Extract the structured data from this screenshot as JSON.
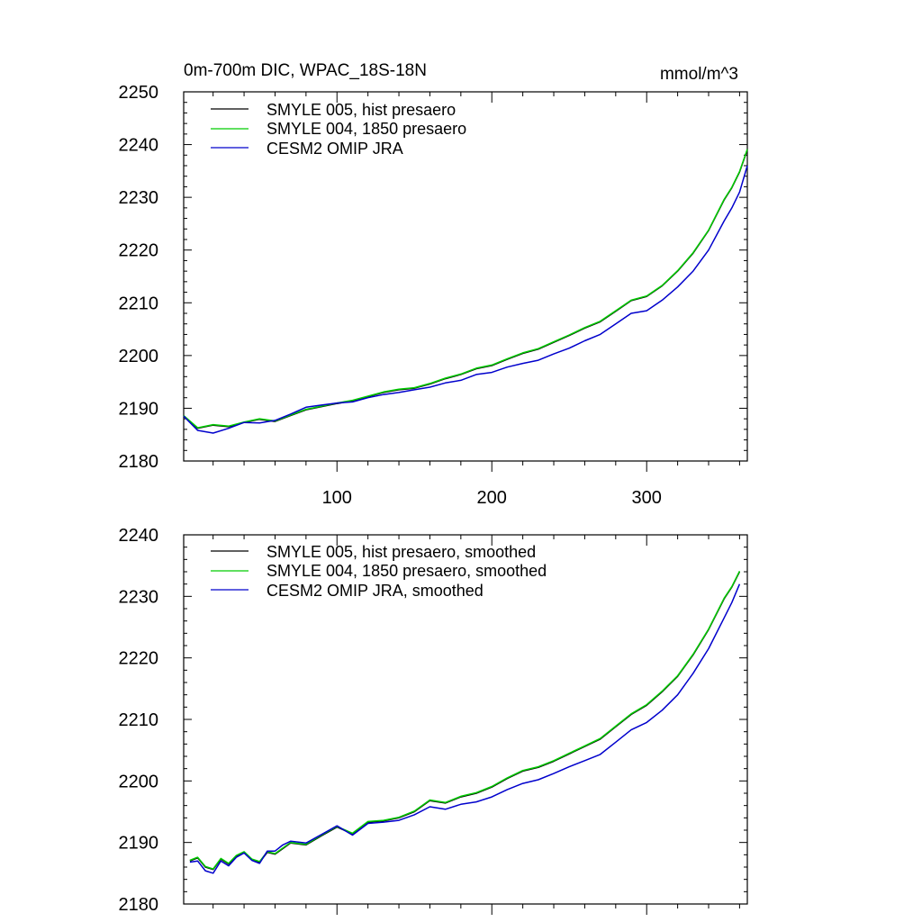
{
  "chart_data": [
    {
      "type": "line",
      "title": "0m-700m DIC, WPAC_18S-18N",
      "units": "mmol/m^3",
      "xlabel": "",
      "ylabel": "",
      "xlim": [
        1,
        365
      ],
      "ylim": [
        2180,
        2250
      ],
      "yticks": [
        "2180",
        "2190",
        "2200",
        "2210",
        "2220",
        "2230",
        "2240",
        "2250"
      ],
      "xticks": [
        "100",
        "200",
        "300"
      ],
      "legend_position": "top-left",
      "series": [
        {
          "name": "SMYLE 005, hist presaero",
          "color": "#000000",
          "x": [
            1,
            10,
            20,
            30,
            40,
            50,
            60,
            70,
            80,
            90,
            100,
            110,
            120,
            130,
            140,
            150,
            160,
            170,
            180,
            190,
            200,
            210,
            220,
            230,
            240,
            250,
            260,
            270,
            280,
            290,
            300,
            310,
            320,
            330,
            340,
            350,
            355,
            360,
            365
          ],
          "values": [
            2188.5,
            2186.2,
            2186.8,
            2186.5,
            2187.3,
            2187.9,
            2187.5,
            2188.6,
            2189.7,
            2190.3,
            2190.9,
            2191.4,
            2192.2,
            2193.0,
            2193.5,
            2193.8,
            2194.6,
            2195.6,
            2196.4,
            2197.5,
            2198.1,
            2199.3,
            2200.4,
            2201.2,
            2202.5,
            2203.8,
            2205.2,
            2206.4,
            2208.4,
            2210.4,
            2211.2,
            2213.2,
            2216.0,
            2219.4,
            2223.7,
            2229.5,
            2231.8,
            2234.8,
            2239.0
          ]
        },
        {
          "name": "SMYLE 004, 1850 presaero",
          "color": "#00cc00",
          "x": [
            1,
            10,
            20,
            30,
            40,
            50,
            60,
            70,
            80,
            90,
            100,
            110,
            120,
            130,
            140,
            150,
            160,
            170,
            180,
            190,
            200,
            210,
            220,
            230,
            240,
            250,
            260,
            270,
            280,
            290,
            300,
            310,
            320,
            330,
            340,
            350,
            355,
            360,
            365
          ],
          "values": [
            2188.6,
            2186.3,
            2186.9,
            2186.6,
            2187.4,
            2188.0,
            2187.6,
            2188.7,
            2189.8,
            2190.4,
            2191.0,
            2191.5,
            2192.3,
            2193.1,
            2193.6,
            2193.9,
            2194.7,
            2195.7,
            2196.5,
            2197.6,
            2198.2,
            2199.4,
            2200.5,
            2201.3,
            2202.6,
            2203.9,
            2205.3,
            2206.5,
            2208.5,
            2210.5,
            2211.3,
            2213.3,
            2216.1,
            2219.5,
            2223.8,
            2229.6,
            2231.9,
            2234.9,
            2239.1
          ]
        },
        {
          "name": "CESM2 OMIP JRA",
          "color": "#0000cc",
          "x": [
            1,
            10,
            20,
            30,
            40,
            50,
            60,
            70,
            80,
            90,
            100,
            110,
            120,
            130,
            140,
            150,
            160,
            170,
            180,
            190,
            200,
            210,
            220,
            230,
            240,
            250,
            260,
            270,
            280,
            290,
            300,
            310,
            320,
            330,
            340,
            350,
            355,
            360,
            365
          ],
          "values": [
            2188.5,
            2185.8,
            2185.3,
            2186.2,
            2187.3,
            2187.2,
            2187.7,
            2188.9,
            2190.2,
            2190.6,
            2191.0,
            2191.2,
            2192.0,
            2192.6,
            2193.0,
            2193.5,
            2194.0,
            2194.8,
            2195.3,
            2196.4,
            2196.8,
            2197.8,
            2198.5,
            2199.1,
            2200.3,
            2201.4,
            2202.8,
            2204.0,
            2206.0,
            2208.0,
            2208.5,
            2210.5,
            2213.0,
            2216.0,
            2220.0,
            2225.5,
            2228.0,
            2231.0,
            2236.0
          ]
        }
      ]
    },
    {
      "type": "line",
      "title": "",
      "xlabel": "",
      "ylabel": "",
      "xlim": [
        1,
        365
      ],
      "ylim": [
        2180,
        2240
      ],
      "yticks": [
        "2180",
        "2190",
        "2200",
        "2210",
        "2220",
        "2230",
        "2240"
      ],
      "xticks": [],
      "legend_position": "top-left",
      "series": [
        {
          "name": "SMYLE 005, hist presaero, smoothed",
          "color": "#000000",
          "x": [
            5,
            10,
            15,
            20,
            25,
            30,
            35,
            40,
            45,
            50,
            55,
            60,
            65,
            70,
            80,
            90,
            100,
            110,
            120,
            130,
            140,
            150,
            160,
            170,
            180,
            190,
            200,
            210,
            220,
            230,
            240,
            250,
            260,
            270,
            280,
            290,
            300,
            310,
            320,
            330,
            340,
            350,
            355,
            360
          ],
          "values": [
            2187.0,
            2187.5,
            2186.0,
            2185.6,
            2187.3,
            2186.5,
            2187.8,
            2188.4,
            2187.2,
            2186.8,
            2188.4,
            2188.1,
            2189.0,
            2189.9,
            2189.6,
            2191.1,
            2192.5,
            2191.4,
            2193.3,
            2193.5,
            2194.0,
            2195.0,
            2196.8,
            2196.4,
            2197.4,
            2198.0,
            2199.0,
            2200.4,
            2201.6,
            2202.2,
            2203.2,
            2204.4,
            2205.6,
            2206.8,
            2208.8,
            2210.8,
            2212.3,
            2214.5,
            2217.0,
            2220.5,
            2224.6,
            2229.6,
            2231.5,
            2234.0
          ]
        },
        {
          "name": "SMYLE 004, 1850 presaero, smoothed",
          "color": "#00cc00",
          "x": [
            5,
            10,
            15,
            20,
            25,
            30,
            35,
            40,
            45,
            50,
            55,
            60,
            65,
            70,
            80,
            90,
            100,
            110,
            120,
            130,
            140,
            150,
            160,
            170,
            180,
            190,
            200,
            210,
            220,
            230,
            240,
            250,
            260,
            270,
            280,
            290,
            300,
            310,
            320,
            330,
            340,
            350,
            355,
            360
          ],
          "values": [
            2187.1,
            2187.6,
            2186.1,
            2185.7,
            2187.4,
            2186.6,
            2187.9,
            2188.5,
            2187.3,
            2186.9,
            2188.5,
            2188.2,
            2189.1,
            2190.0,
            2189.7,
            2191.2,
            2192.6,
            2191.5,
            2193.4,
            2193.6,
            2194.1,
            2195.1,
            2196.9,
            2196.5,
            2197.5,
            2198.1,
            2199.1,
            2200.5,
            2201.7,
            2202.3,
            2203.3,
            2204.5,
            2205.7,
            2206.9,
            2208.9,
            2210.9,
            2212.4,
            2214.6,
            2217.1,
            2220.6,
            2224.7,
            2229.7,
            2231.6,
            2234.1
          ]
        },
        {
          "name": "CESM2 OMIP JRA, smoothed",
          "color": "#0000cc",
          "x": [
            5,
            10,
            15,
            20,
            25,
            30,
            35,
            40,
            45,
            50,
            55,
            60,
            65,
            70,
            80,
            90,
            100,
            110,
            120,
            130,
            140,
            150,
            160,
            170,
            180,
            190,
            200,
            210,
            220,
            230,
            240,
            250,
            260,
            270,
            280,
            290,
            300,
            310,
            320,
            330,
            340,
            350,
            355,
            360
          ],
          "values": [
            2186.8,
            2187.0,
            2185.4,
            2185.0,
            2187.0,
            2186.2,
            2187.6,
            2188.3,
            2187.1,
            2186.6,
            2188.6,
            2188.6,
            2189.6,
            2190.2,
            2189.9,
            2191.3,
            2192.7,
            2191.2,
            2193.1,
            2193.3,
            2193.6,
            2194.5,
            2195.8,
            2195.4,
            2196.2,
            2196.6,
            2197.4,
            2198.6,
            2199.6,
            2200.2,
            2201.2,
            2202.3,
            2203.3,
            2204.3,
            2206.3,
            2208.3,
            2209.5,
            2211.5,
            2214.0,
            2217.5,
            2221.5,
            2226.5,
            2229.0,
            2232.0
          ]
        }
      ]
    }
  ]
}
